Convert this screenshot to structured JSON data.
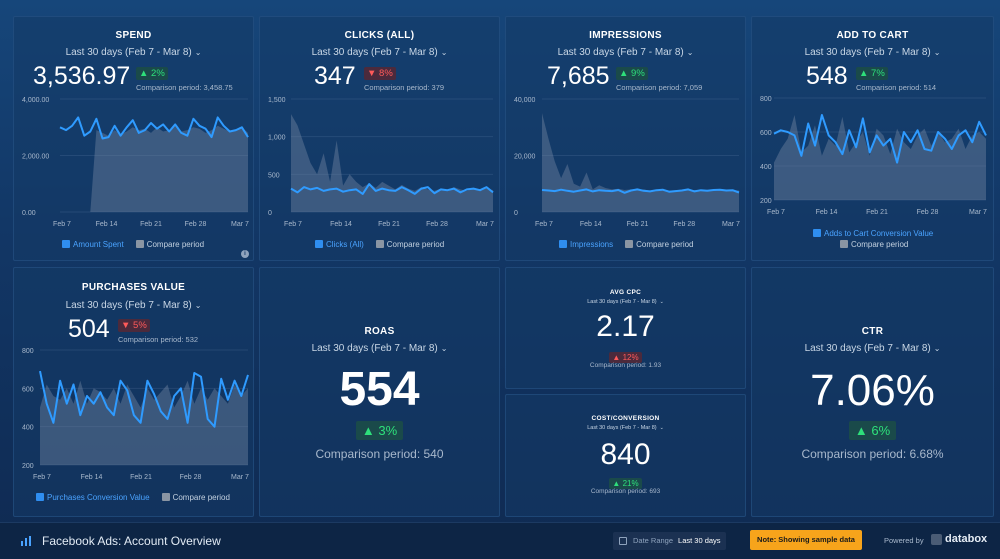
{
  "tiles": {
    "spend": {
      "title": "SPEND",
      "range": "Last 30 days (Feb 7 - Mar 8)",
      "value": "3,536.97",
      "badge": "▲ 2%",
      "comparison": "Comparison period: 3,458.75",
      "legend_a": "Amount Spent",
      "legend_b": "Compare period"
    },
    "clicks": {
      "title": "CLICKS (ALL)",
      "range": "Last 30 days (Feb 7 - Mar 8)",
      "value": "347",
      "badge": "▼ 8%",
      "comparison": "Comparison period: 379",
      "legend_a": "Clicks (All)",
      "legend_b": "Compare period"
    },
    "impressions": {
      "title": "IMPRESSIONS",
      "range": "Last 30 days (Feb 7 - Mar 8)",
      "value": "7,685",
      "badge": "▲ 9%",
      "comparison": "Comparison period: 7,059",
      "legend_a": "Impressions",
      "legend_b": "Compare period"
    },
    "add_to_cart": {
      "title": "ADD TO CART",
      "range": "Last 30 days (Feb 7 - Mar 8)",
      "value": "548",
      "badge": "▲ 7%",
      "comparison": "Comparison period: 514",
      "legend_a": "Adds to Cart Conversion Value",
      "legend_b": "Compare period"
    },
    "purchases": {
      "title": "PURCHASES VALUE",
      "range": "Last 30 days (Feb 7 - Mar 8)",
      "value": "504",
      "badge": "▼ 5%",
      "comparison": "Comparison period: 532",
      "legend_a": "Purchases Conversion Value",
      "legend_b": "Compare period"
    },
    "roas": {
      "title": "ROAS",
      "range": "Last 30 days (Feb 7 - Mar 8)",
      "value": "554",
      "badge": "▲ 3%",
      "comparison": "Comparison period: 540"
    },
    "avg_cpc": {
      "title": "AVG CPC",
      "range": "Last 30 days (Feb 7 - Mar 8)",
      "value": "2.17",
      "badge": "▲ 12%",
      "comparison": "Comparison period: 1.93"
    },
    "cost_conv": {
      "title": "COST/CONVERSION",
      "range": "Last 30 days (Feb 7 - Mar 8)",
      "value": "840",
      "badge": "▲ 21%",
      "comparison": "Comparison period: 693"
    },
    "ctr": {
      "title": "CTR",
      "range": "Last 30 days (Feb 7 - Mar 8)",
      "value": "7.06%",
      "badge": "▲ 6%",
      "comparison": "Comparison period: 6.68%"
    }
  },
  "footer": {
    "title": "Facebook Ads: Account Overview",
    "date_range_label": "Date Range",
    "date_range_value": "Last 30 days",
    "note": "Note: Showing sample data",
    "powered": "Powered by",
    "brand": "databox"
  },
  "colors": {
    "line": "#2f9bff",
    "area": "#4a5f7e",
    "up": "#2ee07b",
    "down": "#ff5a5a"
  },
  "chart_data": [
    {
      "type": "line",
      "id": "spend",
      "x_ticks": [
        "Feb 7",
        "Feb 14",
        "Feb 21",
        "Feb 28",
        "Mar 7"
      ],
      "y_ticks": [
        "4,000.00",
        "2,000.00",
        "0.00"
      ],
      "ylim": [
        0,
        4000
      ],
      "series": [
        {
          "name": "Amount Spent",
          "values": [
            3000,
            2900,
            3050,
            3350,
            2700,
            2850,
            3300,
            2600,
            2650,
            3050,
            2700,
            3000,
            3250,
            2800,
            2900,
            3150,
            2950,
            3100,
            2850,
            3100,
            2800,
            2700,
            3300,
            3050,
            2950,
            2650,
            3350,
            3050,
            2850,
            2900,
            3000,
            2650
          ]
        },
        {
          "name": "Compare period",
          "values": [
            0,
            0,
            0,
            0,
            0,
            0,
            2900,
            2800,
            2700,
            2900,
            2750,
            2850,
            3000,
            2900,
            2950,
            2800,
            3000,
            2850,
            2900,
            3050,
            2850,
            2900,
            3000,
            2950,
            2800,
            2900,
            3050,
            2950,
            2850,
            2900,
            3000,
            2800
          ]
        }
      ]
    },
    {
      "type": "line",
      "id": "clicks",
      "x_ticks": [
        "Feb 7",
        "Feb 14",
        "Feb 21",
        "Feb 28",
        "Mar 7"
      ],
      "y_ticks": [
        "1,500",
        "1,000",
        "500",
        "0"
      ],
      "ylim": [
        0,
        1500
      ],
      "series": [
        {
          "name": "Clicks (All)",
          "values": [
            310,
            260,
            330,
            300,
            320,
            280,
            300,
            310,
            270,
            290,
            300,
            240,
            370,
            280,
            310,
            290,
            280,
            330,
            290,
            240,
            310,
            330,
            250,
            300,
            290,
            310,
            260,
            300,
            310,
            290,
            330,
            260
          ]
        },
        {
          "name": "Compare period",
          "values": [
            1300,
            1150,
            900,
            650,
            500,
            780,
            400,
            950,
            350,
            500,
            400,
            330,
            380,
            320,
            400,
            350,
            300,
            360,
            310,
            280,
            330,
            300,
            280,
            310,
            290,
            330,
            300,
            280,
            310,
            300,
            320,
            290
          ]
        }
      ]
    },
    {
      "type": "line",
      "id": "impressions",
      "x_ticks": [
        "Feb 7",
        "Feb 14",
        "Feb 21",
        "Feb 28",
        "Mar 7"
      ],
      "y_ticks": [
        "40,000",
        "20,000",
        "0"
      ],
      "ylim": [
        0,
        40000
      ],
      "series": [
        {
          "name": "Impressions",
          "values": [
            7800,
            7600,
            7400,
            7900,
            7500,
            7200,
            7600,
            8000,
            7300,
            7700,
            7500,
            7400,
            7800,
            6800,
            7600,
            8000,
            7500,
            7300,
            7700,
            7900,
            7200,
            7400,
            7600,
            8000,
            7300,
            7700,
            7500,
            7800,
            7900,
            7600,
            7700,
            6900
          ]
        },
        {
          "name": "Compare period",
          "values": [
            35000,
            26000,
            18000,
            12000,
            17000,
            10000,
            9000,
            14000,
            8000,
            9500,
            8500,
            8000,
            8200,
            7800,
            8000,
            7600,
            8000,
            7500,
            7800,
            8100,
            7600,
            7700,
            7900,
            7600,
            7800,
            7500,
            7900,
            7700,
            7600,
            7800,
            7700,
            7600
          ]
        }
      ]
    },
    {
      "type": "line",
      "id": "add_to_cart",
      "x_ticks": [
        "Feb 7",
        "Feb 14",
        "Feb 21",
        "Feb 28",
        "Mar 7"
      ],
      "y_ticks": [
        "800",
        "600",
        "400",
        "200"
      ],
      "ylim": [
        200,
        800
      ],
      "series": [
        {
          "name": "Adds to Cart Conversion Value",
          "values": [
            590,
            610,
            600,
            580,
            460,
            650,
            520,
            700,
            580,
            540,
            470,
            610,
            510,
            680,
            480,
            580,
            520,
            560,
            420,
            600,
            540,
            610,
            500,
            490,
            600,
            560,
            500,
            580,
            610,
            540,
            660,
            580
          ]
        },
        {
          "name": "Compare period",
          "values": [
            420,
            500,
            560,
            700,
            480,
            520,
            640,
            460,
            560,
            520,
            690,
            480,
            540,
            600,
            460,
            620,
            580,
            470,
            620,
            540,
            500,
            580,
            620,
            520,
            600,
            540,
            560,
            620,
            500,
            580,
            600,
            560
          ]
        }
      ]
    },
    {
      "type": "line",
      "id": "purchases",
      "x_ticks": [
        "Feb 7",
        "Feb 14",
        "Feb 21",
        "Feb 28",
        "Mar 7"
      ],
      "y_ticks": [
        "800",
        "600",
        "400",
        "200"
      ],
      "ylim": [
        200,
        800
      ],
      "series": [
        {
          "name": "Purchases Conversion Value",
          "values": [
            690,
            520,
            420,
            640,
            520,
            620,
            460,
            560,
            520,
            580,
            500,
            460,
            640,
            590,
            460,
            420,
            640,
            570,
            480,
            440,
            560,
            600,
            420,
            680,
            660,
            440,
            400,
            650,
            540,
            640,
            560,
            670
          ]
        },
        {
          "name": "Compare period",
          "values": [
            500,
            620,
            560,
            540,
            600,
            520,
            640,
            520,
            600,
            580,
            540,
            600,
            520,
            620,
            560,
            500,
            600,
            540,
            580,
            620,
            500,
            560,
            640,
            520,
            600,
            540,
            600,
            560,
            520,
            620,
            560,
            600
          ]
        }
      ]
    }
  ]
}
